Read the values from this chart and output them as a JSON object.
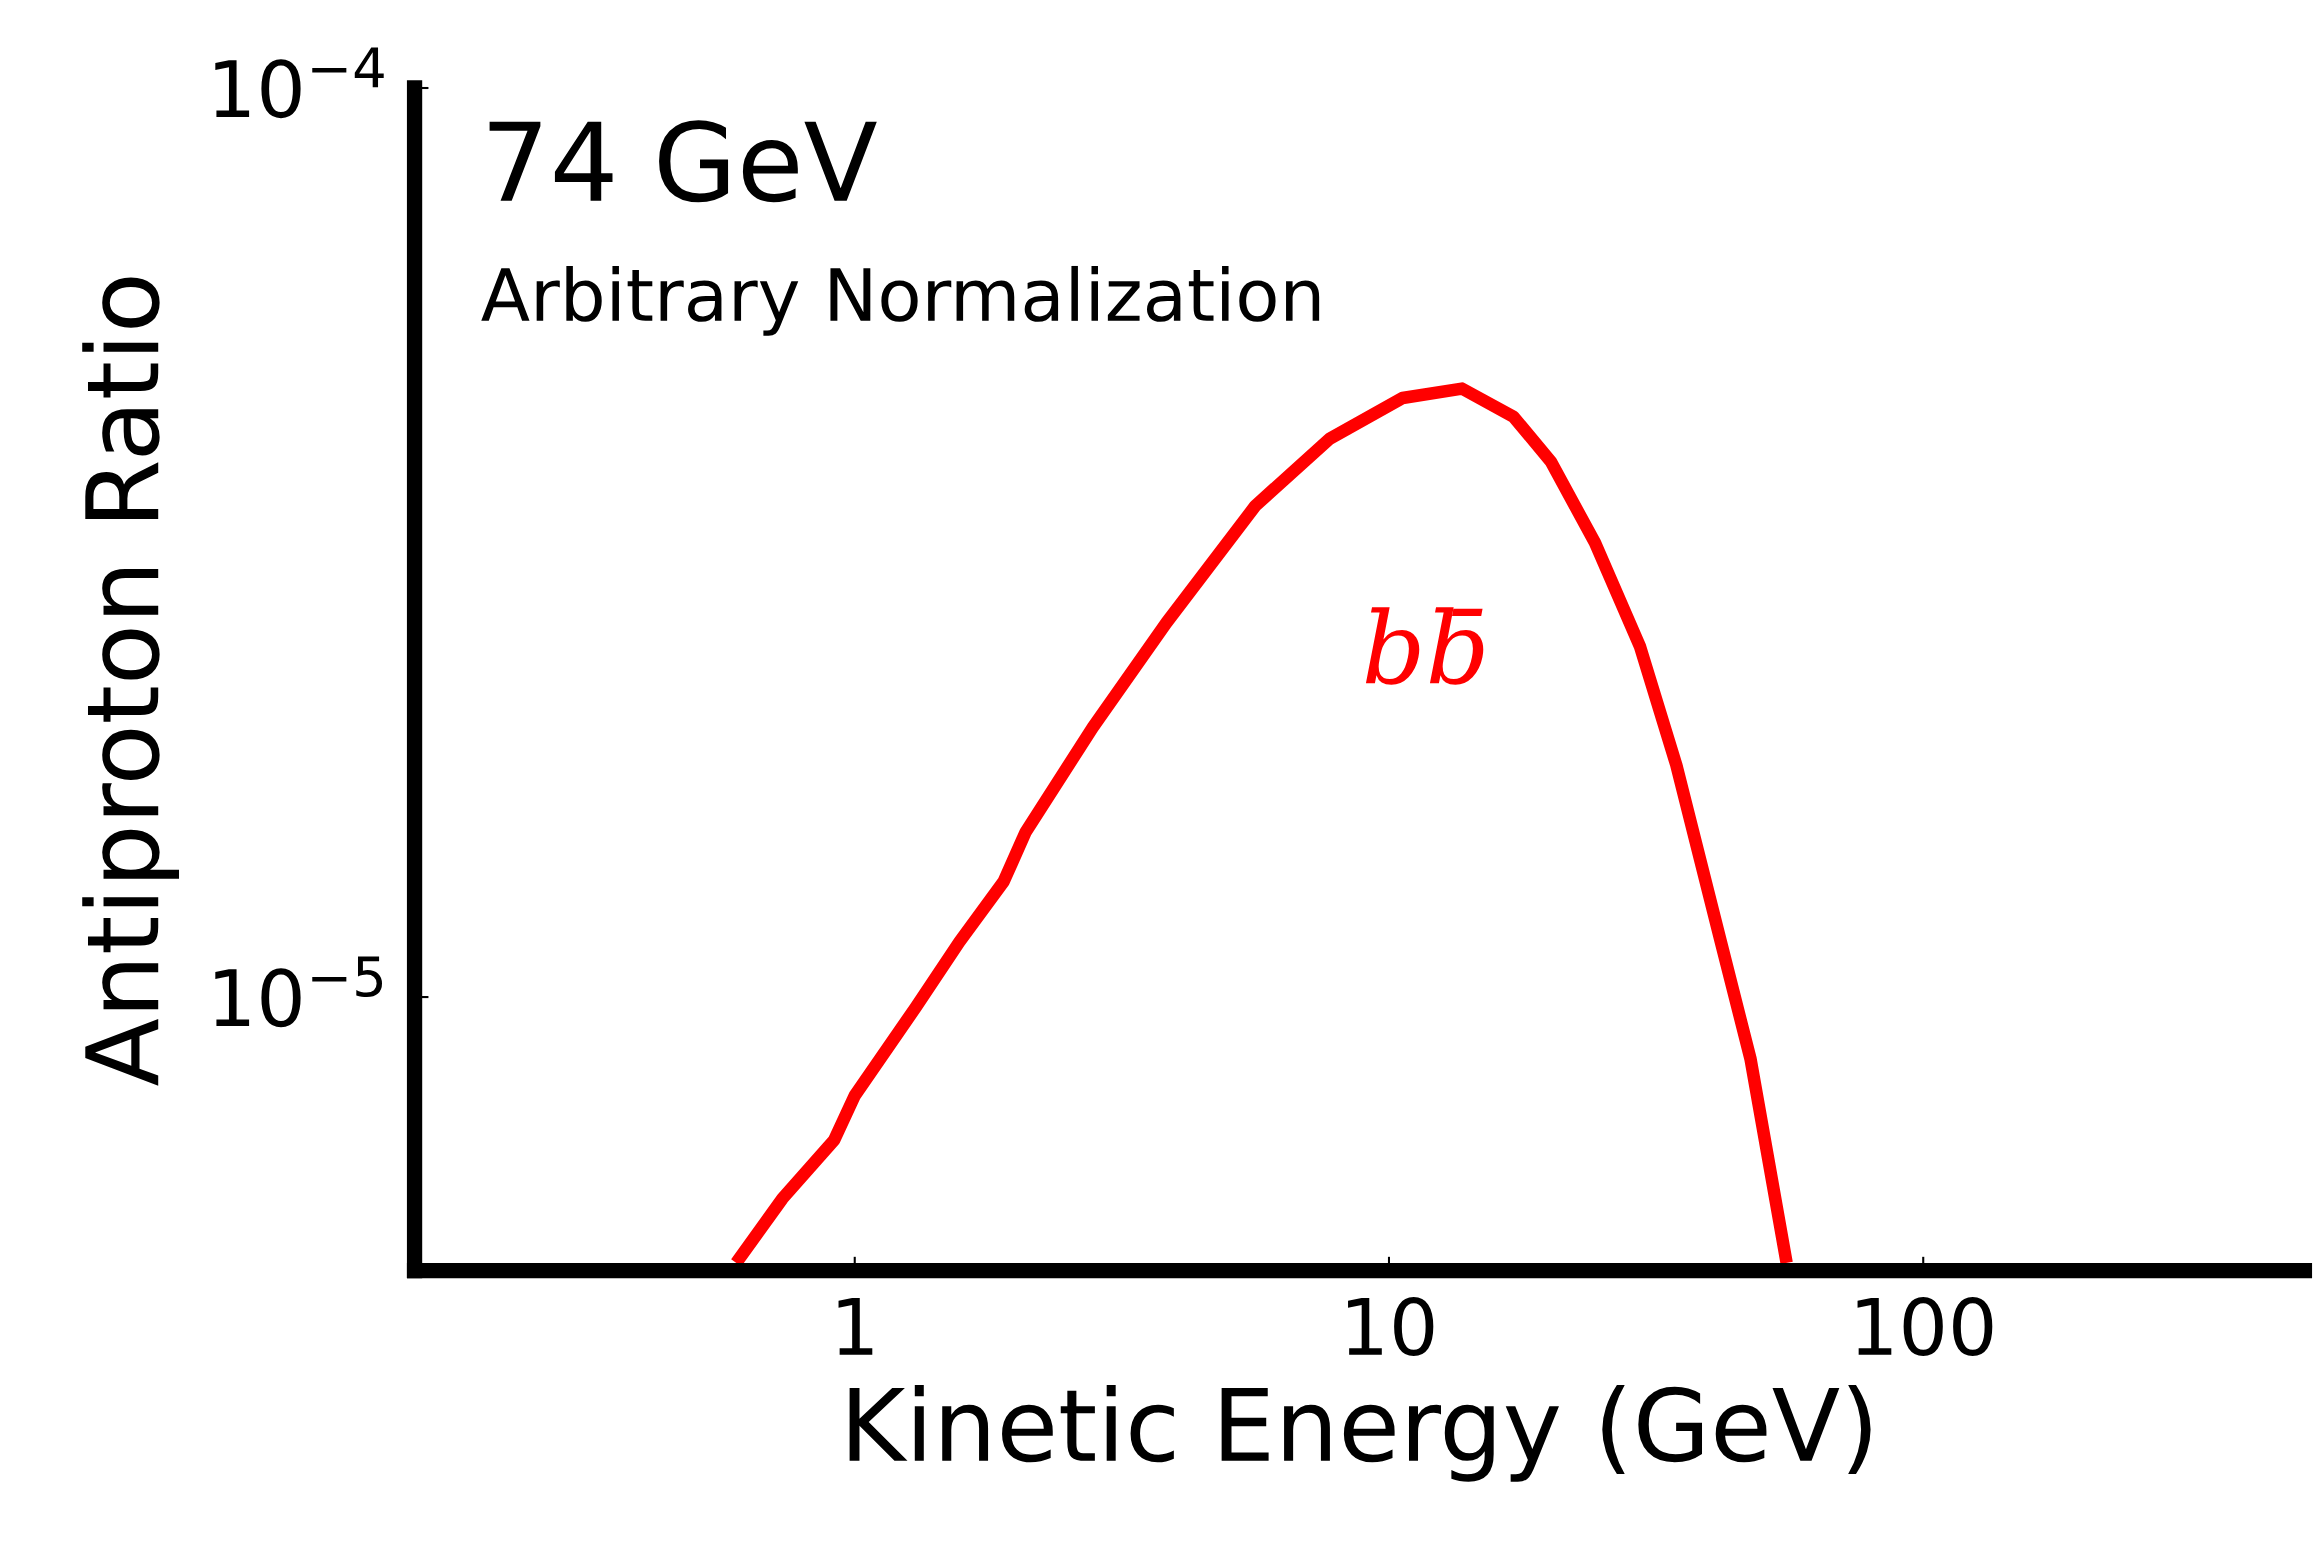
{
  "chart_data": {
    "type": "line",
    "xlabel": "Kinetic Energy (GeV)",
    "ylabel": "Antiproton Ratio",
    "log": "xy",
    "annotations": [
      "74 GeV",
      "Arbitrary Normalization"
    ],
    "series": [
      {
        "name": "bb̄",
        "color": "#ff0000",
        "x": [
          0.6,
          0.732,
          0.915,
          1.0,
          1.3,
          1.57,
          1.9,
          2.09,
          2.79,
          3.83,
          5.62,
          7.73,
          10.6,
          13.7,
          17.1,
          20.1,
          24.3,
          29.5,
          34.5,
          41.8,
          47.5,
          55.5
        ],
        "values": [
          5.1e-06,
          6e-06,
          6.96e-06,
          7.79e-06,
          9.74e-06,
          1.15e-05,
          1.34e-05,
          1.52e-05,
          1.98e-05,
          2.58e-05,
          3.47e-05,
          4.11e-05,
          4.56e-05,
          4.67e-05,
          4.35e-05,
          3.88e-05,
          3.16e-05,
          2.43e-05,
          1.8e-05,
          1.15e-05,
          8.55e-06,
          5.1e-06
        ]
      }
    ],
    "xlim": [
      0.15,
      517
    ],
    "ylim": [
      5e-06,
      0.0001
    ],
    "xticks": [
      1,
      10,
      100
    ],
    "yticks": [
      {
        "value": 0.0001,
        "label": "10$^{−4}$"
      },
      {
        "value": 1e-05,
        "label": "10$^{−5}$"
      }
    ],
    "grid": false,
    "line_style": "solid"
  }
}
